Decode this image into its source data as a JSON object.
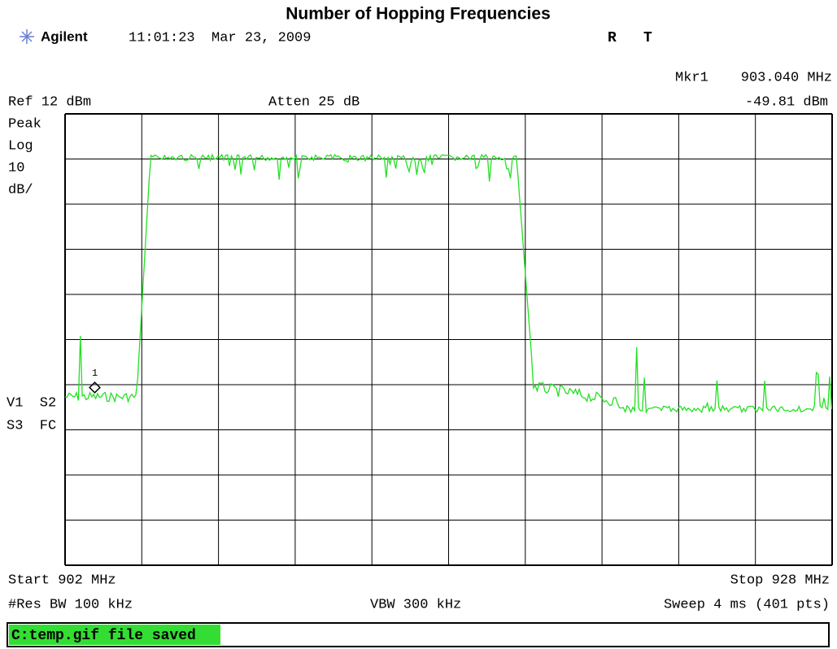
{
  "title": "Number of Hopping Frequencies",
  "header": {
    "brand": "Agilent",
    "timestamp": "11:01:23  Mar 23, 2009",
    "flag_r": "R",
    "flag_t": "T"
  },
  "marker": {
    "name": "Mkr1",
    "frequency": "903.040 MHz",
    "level": "-49.81 dBm",
    "index": "1"
  },
  "reference": "Ref 12 dBm",
  "attenuation": "Atten 25 dB",
  "scale_labels": [
    "Peak",
    "Log",
    "10",
    "dB/"
  ],
  "side_labels": [
    "V1  S2",
    "S3  FC"
  ],
  "footer": {
    "start": "Start 902 MHz",
    "stop": "Stop 928 MHz",
    "res_bw": "#Res BW 100 kHz",
    "vbw": "VBW 300 kHz",
    "sweep": "Sweep 4 ms (401 pts)"
  },
  "status": "C:temp.gif file saved"
}
